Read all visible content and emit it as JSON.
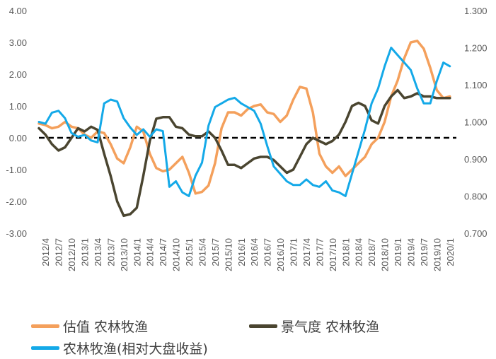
{
  "chart_data": {
    "type": "line",
    "title": "",
    "xlabel": "",
    "ylabel": "",
    "ylim": [
      -3,
      4
    ],
    "y2lim": [
      0.7,
      1.3
    ],
    "y_ticks": [
      "4.00",
      "3.00",
      "2.00",
      "1.00",
      "0.00",
      "-1.00",
      "-2.00",
      "-3.00"
    ],
    "y2_ticks": [
      "1.300",
      "1.200",
      "1.100",
      "1.000",
      "0.900",
      "0.800",
      "0.700"
    ],
    "x_ticks": [
      "2012/4",
      "2012/7",
      "2012/10",
      "2013/1",
      "2013/4",
      "2013/7",
      "2013/10",
      "2014/1",
      "2014/4",
      "2014/7",
      "2014/10",
      "2015/1",
      "2015/4",
      "2015/7",
      "2015/10",
      "2016/1",
      "2016/4",
      "2016/7",
      "2016/10",
      "2017/1",
      "2017/4",
      "2017/7",
      "2017/10",
      "2018/1",
      "2018/4",
      "2018/7",
      "2018/10",
      "2019/1",
      "2019/4",
      "2019/7",
      "2019/10",
      "2020/1"
    ],
    "x_range": [
      0,
      32
    ],
    "reference_line": {
      "axis": "left",
      "value": 0,
      "style": "dashed",
      "color": "#000000"
    },
    "grid": false,
    "legend_position": "bottom",
    "series": [
      {
        "name": "估值 农林牧渔",
        "axis": "left",
        "color": "#F4A05C",
        "x": [
          0,
          0.5,
          1,
          1.5,
          2,
          2.5,
          3,
          3.5,
          4,
          4.5,
          5,
          5.5,
          6,
          6.5,
          7,
          7.5,
          8,
          8.5,
          9,
          9.5,
          10,
          10.5,
          11,
          11.5,
          12,
          12.5,
          13,
          13.5,
          14,
          14.5,
          15,
          15.5,
          16,
          16.5,
          17,
          17.5,
          18,
          18.5,
          19,
          19.5,
          20,
          20.5,
          21,
          21.5,
          22,
          22.5,
          23,
          23.5,
          24,
          24.5,
          25,
          25.5,
          26,
          26.5,
          27,
          27.5,
          28,
          28.5,
          29,
          29.5,
          30,
          30.5,
          31,
          31.5
        ],
        "y": [
          0.45,
          0.4,
          0.3,
          0.35,
          0.5,
          0.35,
          0.3,
          0.1,
          0.0,
          0.2,
          0.15,
          -0.2,
          -0.65,
          -0.8,
          -0.3,
          0.35,
          0.2,
          -0.5,
          -0.95,
          -1.05,
          -1.0,
          -0.8,
          -0.6,
          -1.1,
          -1.75,
          -1.7,
          -1.5,
          -0.8,
          0.3,
          0.8,
          0.8,
          0.7,
          0.9,
          1.0,
          1.05,
          0.8,
          0.75,
          0.5,
          0.7,
          1.2,
          1.6,
          1.55,
          0.8,
          -0.5,
          -0.9,
          -1.1,
          -0.9,
          -1.2,
          -1.0,
          -0.8,
          -0.6,
          -0.2,
          0.0,
          0.5,
          1.3,
          1.8,
          2.5,
          3.0,
          3.05,
          2.8,
          2.2,
          1.5,
          1.25,
          1.3
        ]
      },
      {
        "name": "景气度 农林牧渔",
        "axis": "left",
        "color": "#4A4530",
        "x": [
          0,
          0.5,
          1,
          1.5,
          2,
          2.5,
          3,
          3.5,
          4,
          4.5,
          5,
          5.5,
          6,
          6.5,
          7,
          7.5,
          8,
          8.5,
          9,
          9.5,
          10,
          10.5,
          11,
          11.5,
          12,
          12.5,
          13,
          13.5,
          14,
          14.5,
          15,
          15.5,
          16,
          16.5,
          17,
          17.5,
          18,
          18.5,
          19,
          19.5,
          20,
          20.5,
          21,
          21.5,
          22,
          22.5,
          23,
          23.5,
          24,
          24.5,
          25,
          25.5,
          26,
          26.5,
          27,
          27.5,
          28,
          28.5,
          29,
          29.5,
          30,
          30.5,
          31,
          31.5
        ],
        "y": [
          0.3,
          0.1,
          -0.2,
          -0.4,
          -0.3,
          0.0,
          0.3,
          0.2,
          0.35,
          0.25,
          -0.5,
          -1.2,
          -2.0,
          -2.45,
          -2.4,
          -2.2,
          -1.2,
          -0.1,
          0.6,
          0.65,
          0.65,
          0.35,
          0.3,
          0.1,
          0.05,
          0.05,
          0.2,
          0.0,
          -0.4,
          -0.85,
          -0.85,
          -0.95,
          -0.8,
          -0.65,
          -0.6,
          -0.6,
          -0.7,
          -0.9,
          -1.1,
          -1.0,
          -0.6,
          -0.2,
          0.0,
          -0.1,
          -0.2,
          -0.1,
          0.1,
          0.5,
          1.0,
          1.1,
          1.0,
          0.55,
          0.45,
          1.0,
          1.3,
          1.5,
          1.25,
          1.3,
          1.4,
          1.3,
          1.3,
          1.25,
          1.25,
          1.25
        ]
      },
      {
        "name": "农林牧渔(相对大盘收益)",
        "axis": "right",
        "color": "#14A9E8",
        "x": [
          0,
          0.5,
          1,
          1.5,
          2,
          2.5,
          3,
          3.5,
          4,
          4.5,
          5,
          5.5,
          6,
          6.5,
          7,
          7.5,
          8,
          8.5,
          9,
          9.5,
          10,
          10.5,
          11,
          11.5,
          12,
          12.5,
          13,
          13.5,
          14,
          14.5,
          15,
          15.5,
          16,
          16.5,
          17,
          17.5,
          18,
          18.5,
          19,
          19.5,
          20,
          20.5,
          21,
          21.5,
          22,
          22.5,
          23,
          23.5,
          24,
          24.5,
          25,
          25.5,
          26,
          26.5,
          27,
          27.5,
          28,
          28.5,
          29,
          29.5,
          30,
          30.5,
          31,
          31.5
        ],
        "y": [
          1.0,
          0.995,
          1.025,
          1.03,
          1.01,
          0.97,
          0.96,
          0.965,
          0.95,
          0.945,
          1.05,
          1.06,
          1.055,
          1.01,
          0.985,
          0.965,
          0.98,
          0.96,
          0.98,
          0.975,
          0.825,
          0.84,
          0.81,
          0.8,
          0.855,
          0.89,
          0.99,
          1.04,
          1.05,
          1.06,
          1.065,
          1.05,
          1.04,
          1.03,
          0.995,
          0.935,
          0.88,
          0.86,
          0.84,
          0.83,
          0.83,
          0.845,
          0.83,
          0.825,
          0.84,
          0.815,
          0.81,
          0.8,
          0.86,
          0.92,
          0.98,
          1.05,
          1.09,
          1.15,
          1.2,
          1.18,
          1.16,
          1.14,
          1.09,
          1.05,
          1.05,
          1.11,
          1.16,
          1.15
        ]
      }
    ]
  }
}
